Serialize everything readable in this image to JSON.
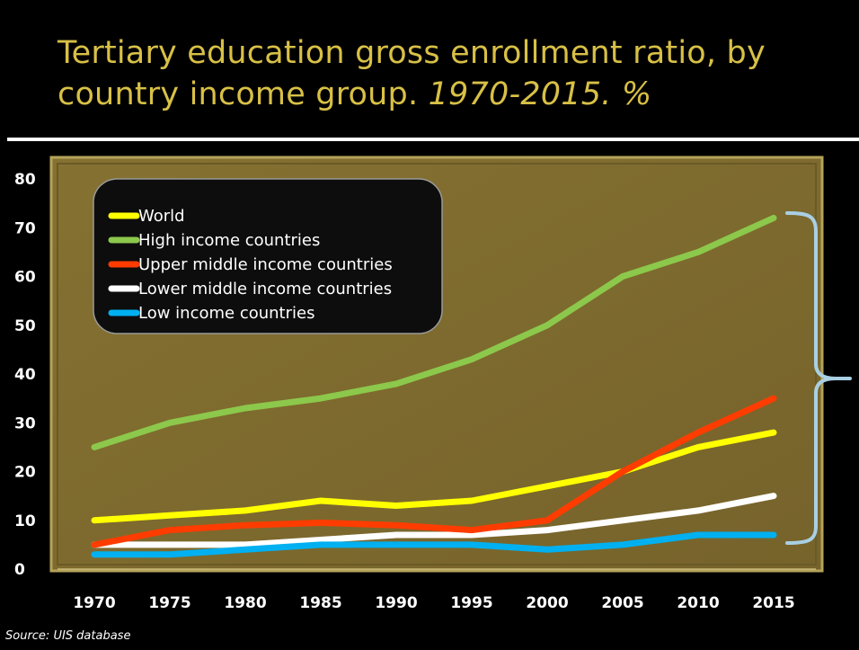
{
  "title": {
    "main": "Tertiary education gross enrollment ratio, by country income group.",
    "subtitle": "1970-2015. %"
  },
  "source": "Source: UIS database",
  "colors": {
    "background": "#000000",
    "title": "#d8c046",
    "plot_area": "#7e6a2e",
    "legend_box": "#0d0d0d",
    "axis_text": "#ffffff",
    "bracket": "#a9cfe3"
  },
  "chart_data": {
    "type": "line",
    "title": "Tertiary education gross enrollment ratio, by country income group. 1970-2015. %",
    "xlabel": "",
    "ylabel": "",
    "x": [
      "1970",
      "1975",
      "1980",
      "1985",
      "1990",
      "1995",
      "2000",
      "2005",
      "2010",
      "2015"
    ],
    "yticks": [
      "0",
      "10",
      "20",
      "30",
      "40",
      "50",
      "60",
      "70",
      "80"
    ],
    "ylim": [
      0,
      80
    ],
    "grid": false,
    "legend_position": "top-left",
    "series": [
      {
        "name": "World",
        "color": "#ffff00",
        "values": [
          10,
          11,
          12,
          14,
          13,
          14,
          17,
          20,
          25,
          28
        ]
      },
      {
        "name": "High income countries",
        "color": "#8cc84b",
        "values": [
          25,
          30,
          33,
          35,
          38,
          43,
          50,
          60,
          65,
          72
        ]
      },
      {
        "name": "Upper middle income countries",
        "color": "#ff3c00",
        "values": [
          5,
          8,
          9,
          9.5,
          9,
          8,
          10,
          20,
          28,
          35
        ]
      },
      {
        "name": "Lower middle income countries",
        "color": "#ffffff",
        "values": [
          5,
          5,
          5,
          6,
          7,
          7,
          8,
          10,
          12,
          15
        ]
      },
      {
        "name": "Low income countries",
        "color": "#00b0f0",
        "values": [
          3,
          3,
          4,
          5,
          5,
          5,
          4,
          5,
          7,
          7
        ]
      }
    ]
  }
}
